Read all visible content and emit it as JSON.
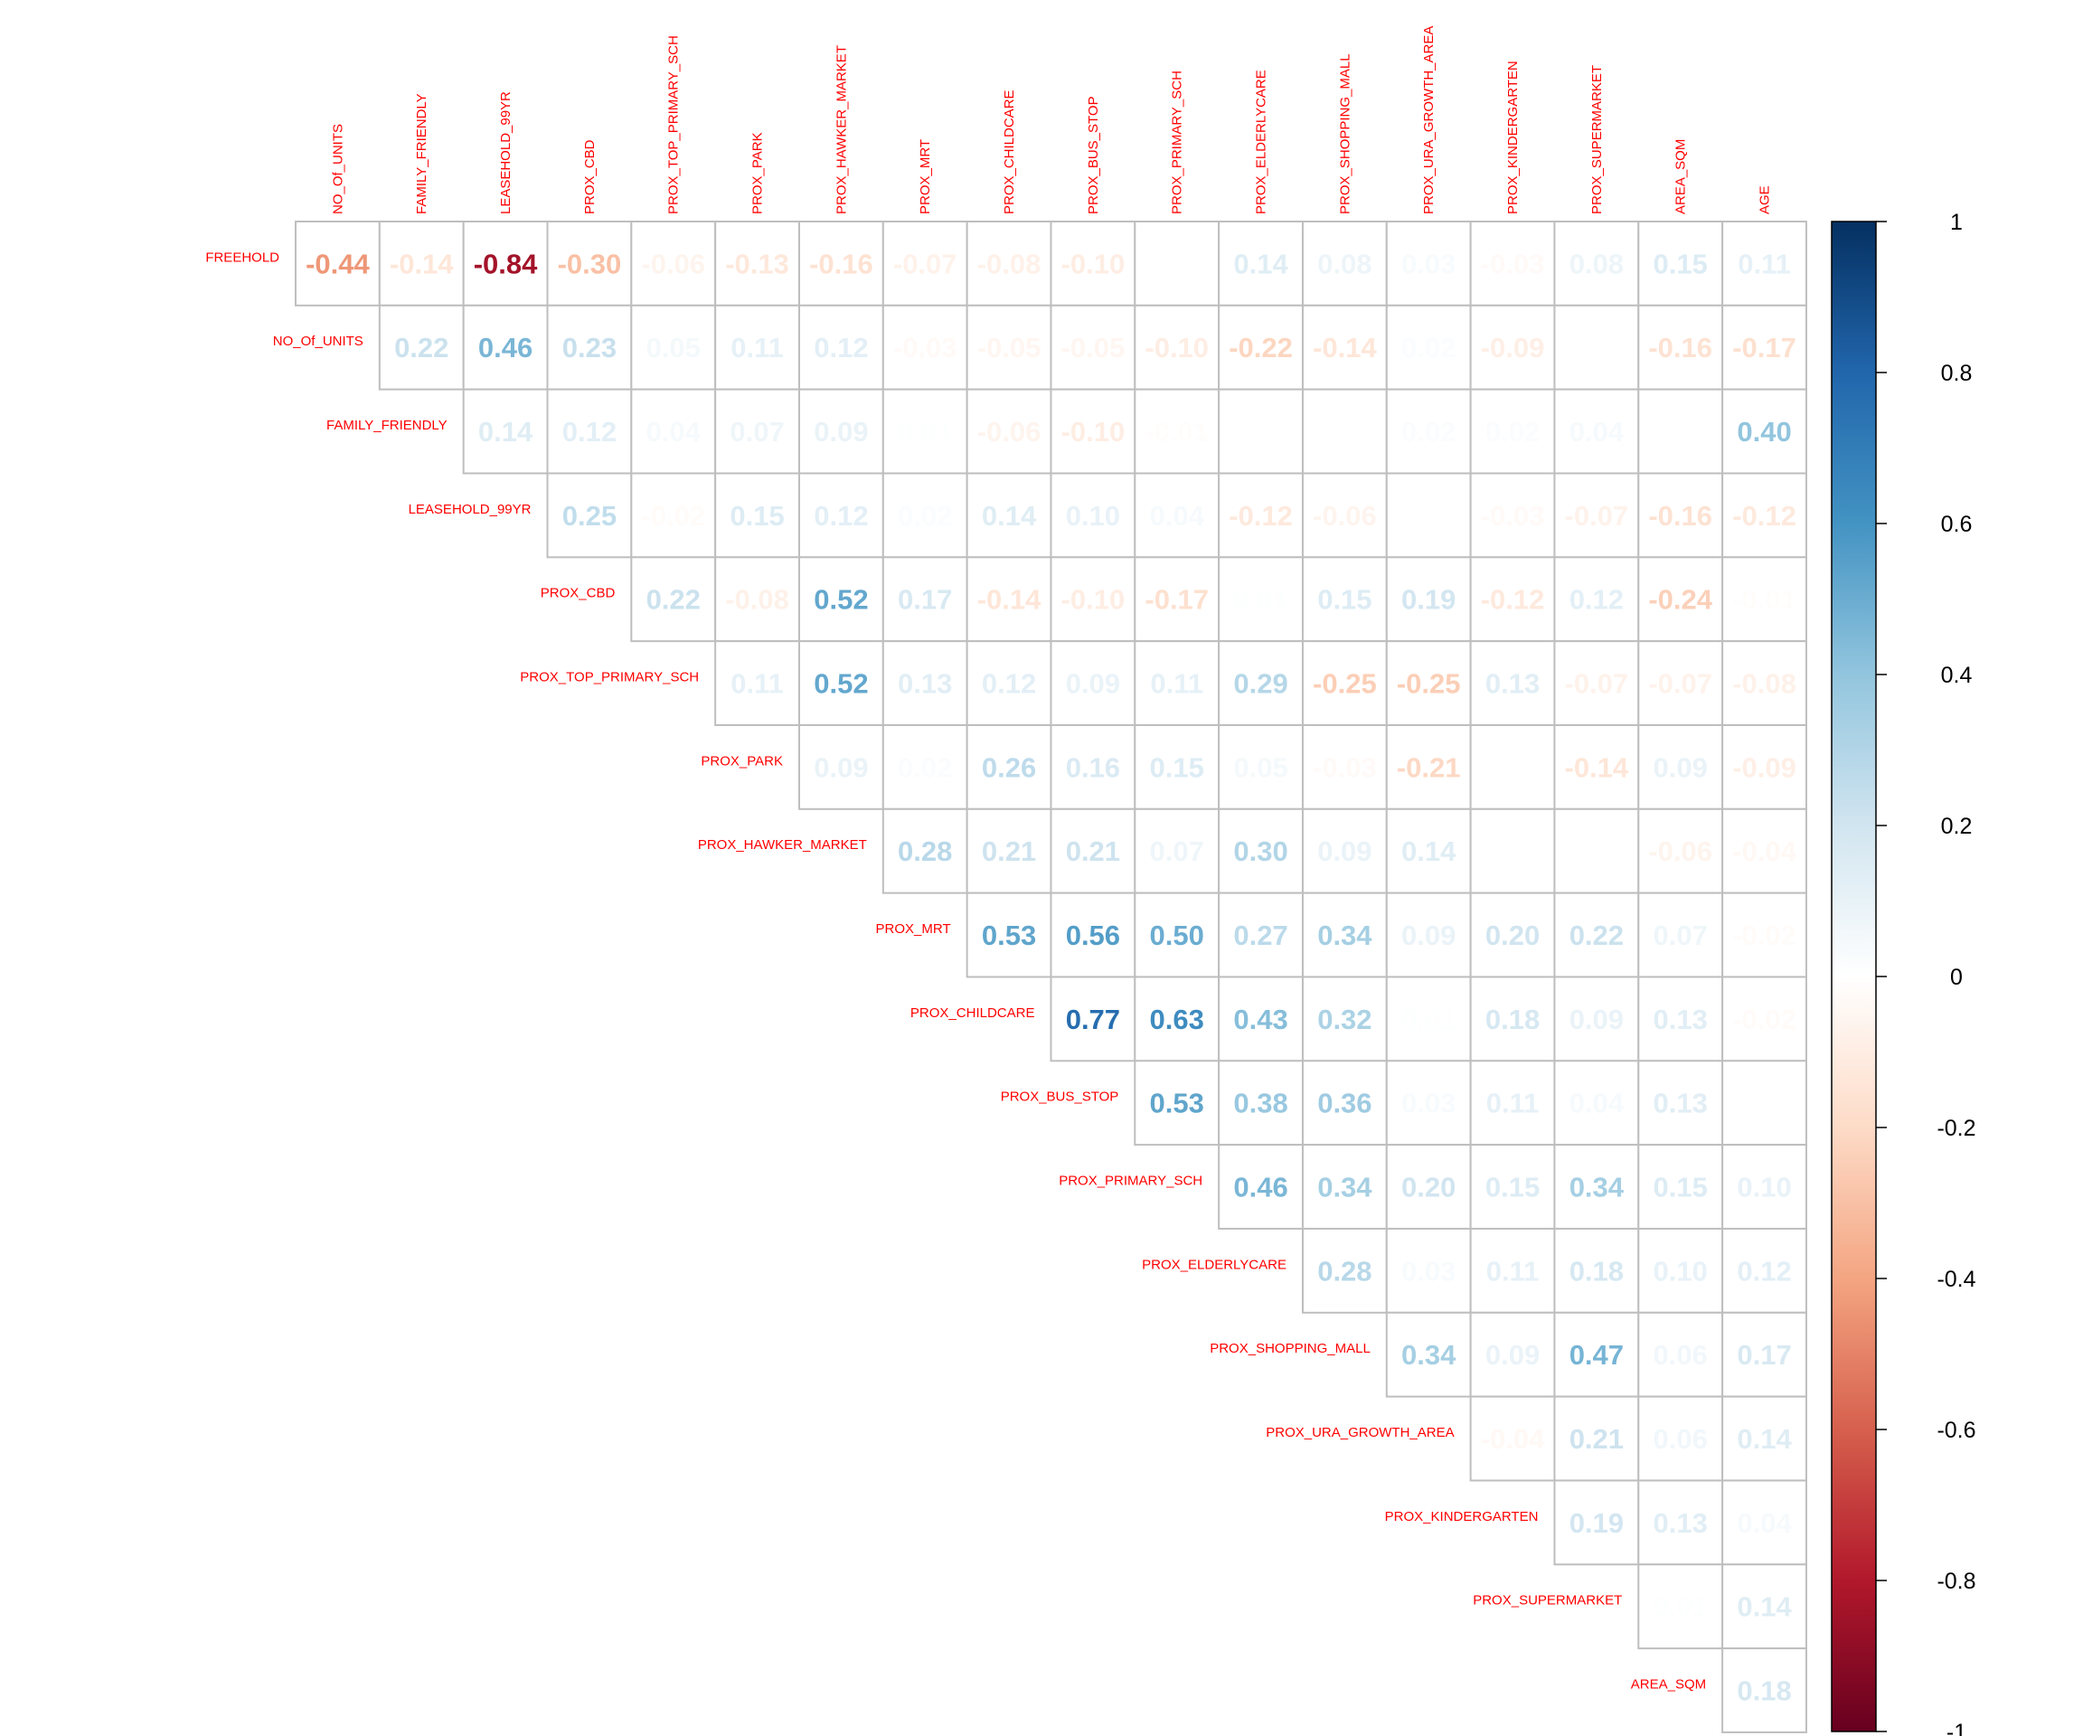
{
  "chart_data": {
    "type": "heatmap",
    "subtype": "correlation-matrix-upper",
    "title": "",
    "method": "number",
    "label_color": "#ff0000",
    "grid_color": "#bebebe",
    "row_labels": [
      "FREEHOLD",
      "NO_Of_UNITS",
      "FAMILY_FRIENDLY",
      "LEASEHOLD_99YR",
      "PROX_CBD",
      "PROX_TOP_PRIMARY_SCH",
      "PROX_PARK",
      "PROX_HAWKER_MARKET",
      "PROX_MRT",
      "PROX_CHILDCARE",
      "PROX_BUS_STOP",
      "PROX_PRIMARY_SCH",
      "PROX_ELDERLYCARE",
      "PROX_SHOPPING_MALL",
      "PROX_URA_GROWTH_AREA",
      "PROX_KINDERGARTEN",
      "PROX_SUPERMARKET",
      "AREA_SQM"
    ],
    "column_labels": [
      "NO_Of_UNITS",
      "FAMILY_FRIENDLY",
      "LEASEHOLD_99YR",
      "PROX_CBD",
      "PROX_TOP_PRIMARY_SCH",
      "PROX_PARK",
      "PROX_HAWKER_MARKET",
      "PROX_MRT",
      "PROX_CHILDCARE",
      "PROX_BUS_STOP",
      "PROX_PRIMARY_SCH",
      "PROX_ELDERLYCARE",
      "PROX_SHOPPING_MALL",
      "PROX_URA_GROWTH_AREA",
      "PROX_KINDERGARTEN",
      "PROX_SUPERMARKET",
      "AREA_SQM",
      "AGE"
    ],
    "values": [
      [
        -0.44,
        -0.14,
        -0.84,
        -0.3,
        -0.06,
        -0.13,
        -0.16,
        -0.07,
        -0.08,
        -0.1,
        0.0,
        0.14,
        0.08,
        0.03,
        -0.03,
        0.08,
        0.15,
        0.11
      ],
      [
        null,
        0.22,
        0.46,
        0.23,
        0.05,
        0.11,
        0.12,
        -0.03,
        -0.05,
        -0.05,
        -0.1,
        -0.22,
        -0.14,
        0.02,
        -0.09,
        0.0,
        -0.16,
        -0.17
      ],
      [
        null,
        null,
        0.14,
        0.12,
        0.04,
        0.07,
        0.09,
        0.01,
        -0.06,
        -0.1,
        -0.01,
        0.0,
        0.0,
        0.02,
        0.02,
        0.04,
        0.0,
        0.4
      ],
      [
        null,
        null,
        null,
        0.25,
        -0.02,
        0.15,
        0.12,
        0.02,
        0.14,
        0.1,
        0.04,
        -0.12,
        -0.06,
        0.0,
        -0.03,
        -0.07,
        -0.16,
        -0.12
      ],
      [
        null,
        null,
        null,
        null,
        0.22,
        -0.08,
        0.52,
        0.17,
        -0.14,
        -0.1,
        -0.17,
        0.01,
        0.15,
        0.19,
        -0.12,
        0.12,
        -0.24,
        -0.01
      ],
      [
        null,
        null,
        null,
        null,
        null,
        0.11,
        0.52,
        0.13,
        0.12,
        0.09,
        0.11,
        0.29,
        -0.25,
        -0.25,
        0.13,
        -0.07,
        -0.07,
        -0.08
      ],
      [
        null,
        null,
        null,
        null,
        null,
        null,
        0.09,
        0.02,
        0.26,
        0.16,
        0.15,
        0.05,
        -0.03,
        -0.21,
        0.0,
        -0.14,
        0.09,
        -0.09
      ],
      [
        null,
        null,
        null,
        null,
        null,
        null,
        null,
        0.28,
        0.21,
        0.21,
        0.07,
        0.3,
        0.09,
        0.14,
        0.0,
        0.0,
        -0.06,
        -0.04
      ],
      [
        null,
        null,
        null,
        null,
        null,
        null,
        null,
        null,
        0.53,
        0.56,
        0.5,
        0.27,
        0.34,
        0.09,
        0.2,
        0.22,
        0.07,
        -0.02
      ],
      [
        null,
        null,
        null,
        null,
        null,
        null,
        null,
        null,
        null,
        0.77,
        0.63,
        0.43,
        0.32,
        0.01,
        0.18,
        0.09,
        0.13,
        -0.02
      ],
      [
        null,
        null,
        null,
        null,
        null,
        null,
        null,
        null,
        null,
        null,
        0.53,
        0.38,
        0.36,
        0.03,
        0.11,
        0.04,
        0.13,
        0.0
      ],
      [
        null,
        null,
        null,
        null,
        null,
        null,
        null,
        null,
        null,
        null,
        null,
        0.46,
        0.34,
        0.2,
        0.15,
        0.34,
        0.15,
        0.1
      ],
      [
        null,
        null,
        null,
        null,
        null,
        null,
        null,
        null,
        null,
        null,
        null,
        null,
        0.28,
        0.03,
        0.11,
        0.18,
        0.1,
        0.12
      ],
      [
        null,
        null,
        null,
        null,
        null,
        null,
        null,
        null,
        null,
        null,
        null,
        null,
        null,
        0.34,
        0.09,
        0.47,
        0.06,
        0.17
      ],
      [
        null,
        null,
        null,
        null,
        null,
        null,
        null,
        null,
        null,
        null,
        null,
        null,
        null,
        null,
        -0.04,
        0.21,
        0.06,
        0.14
      ],
      [
        null,
        null,
        null,
        null,
        null,
        null,
        null,
        null,
        null,
        null,
        null,
        null,
        null,
        null,
        null,
        0.19,
        0.13,
        0.04
      ],
      [
        null,
        null,
        null,
        null,
        null,
        null,
        null,
        null,
        null,
        null,
        null,
        null,
        null,
        null,
        null,
        null,
        0.01,
        0.14
      ],
      [
        null,
        null,
        null,
        null,
        null,
        null,
        null,
        null,
        null,
        null,
        null,
        null,
        null,
        null,
        null,
        null,
        null,
        0.18
      ]
    ],
    "colorbar": {
      "range": [
        -1,
        1
      ],
      "ticks": [
        "1",
        "0.8",
        "0.6",
        "0.4",
        "0.2",
        "0",
        "-0.2",
        "-0.4",
        "-0.6",
        "-0.8",
        "-1"
      ],
      "colors": [
        "#67001F",
        "#B2182B",
        "#D6604D",
        "#F4A582",
        "#FDDBC7",
        "#FFFFFF",
        "#D1E5F0",
        "#92C5DE",
        "#4393C3",
        "#2166AC",
        "#053061"
      ]
    }
  }
}
